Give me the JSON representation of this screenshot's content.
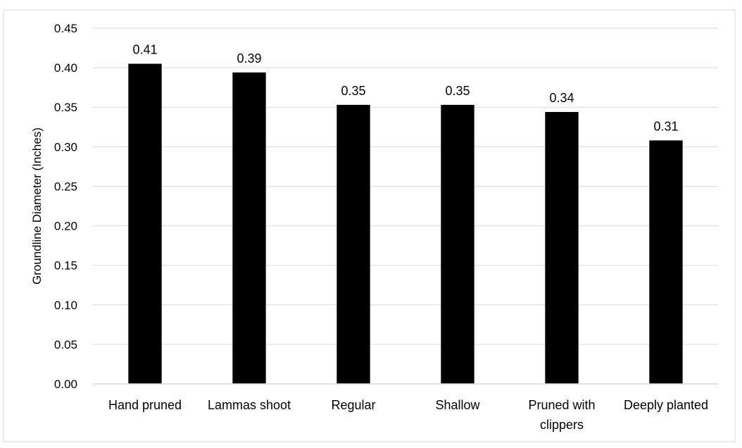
{
  "chart_data": {
    "type": "bar",
    "title": "",
    "xlabel": "",
    "ylabel": "Groundline Diameter (Inches)",
    "categories": [
      "Hand pruned",
      "Lammas shoot",
      "Regular",
      "Shallow",
      "Pruned with clippers",
      "Deeply planted"
    ],
    "values": [
      0.405,
      0.394,
      0.353,
      0.353,
      0.344,
      0.308
    ],
    "data_labels": [
      "0.41",
      "0.39",
      "0.35",
      "0.35",
      "0.34",
      "0.31"
    ],
    "ylim": [
      0,
      0.45
    ],
    "yticks": [
      "0.00",
      "0.05",
      "0.10",
      "0.15",
      "0.20",
      "0.25",
      "0.30",
      "0.35",
      "0.40",
      "0.45"
    ],
    "grid": true,
    "legend": "none",
    "bar_color": "#000000",
    "grid_color": "#d9d9d9",
    "border_color": "#d9d9d9"
  }
}
